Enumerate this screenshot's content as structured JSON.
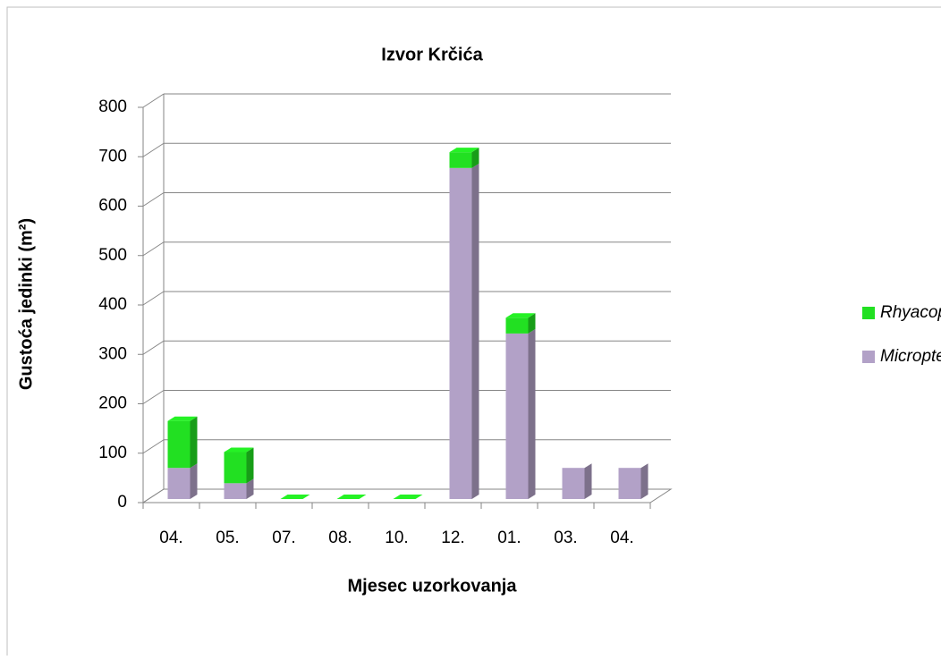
{
  "chart_data": {
    "type": "bar3d_stacked",
    "title": "Izvor Krčića",
    "x_label": "Mjesec uzorkovanja",
    "y_label": "Gustoća jedinki (m²)",
    "categories": [
      "04.",
      "05.",
      "07.",
      "08.",
      "10.",
      "12.",
      "01.",
      "03.",
      "04."
    ],
    "series": [
      {
        "name": "Micropterna nycterobia",
        "color": "#b2a1c7",
        "values": [
          63,
          32,
          0,
          0,
          0,
          670,
          335,
          63,
          63
        ]
      },
      {
        "name": "Rhyacophila sp.",
        "color": "#22e022",
        "values": [
          95,
          63,
          0,
          0,
          0,
          32,
          32,
          0,
          0
        ]
      }
    ],
    "ylim": [
      0,
      800
    ],
    "yticks": [
      0,
      100,
      200,
      300,
      400,
      500,
      600,
      700,
      800
    ],
    "grid": true
  }
}
